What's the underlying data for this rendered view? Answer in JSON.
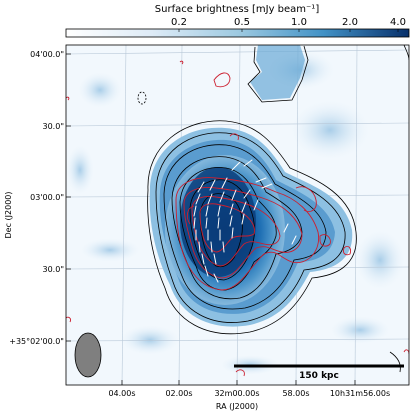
{
  "colorbar": {
    "title": "Surface brightness [mJy beam⁻¹]",
    "ticks": [
      "0.2",
      "0.5",
      "1.0",
      "2.0",
      "4.0"
    ]
  },
  "axes": {
    "xlabel": "RA (J2000)",
    "ylabel": "Dec (J2000)",
    "xticks": [
      "04.00s",
      "02.00s",
      "32m00.00s",
      "58.00s",
      "10h31m56.00s"
    ],
    "yticks": [
      "04'00.0\"",
      "30.0\"",
      "03'00.0\"",
      "30.0\"",
      "+35°02'00.0\""
    ]
  },
  "scalebar": {
    "label": "150 kpc"
  },
  "colors": {
    "low": "#f2f8fd",
    "mid": "#6baed6",
    "high": "#08306b",
    "contour_black": "#000000",
    "contour_red": "#cc1f2f",
    "beam": "#7f7f7f"
  }
}
